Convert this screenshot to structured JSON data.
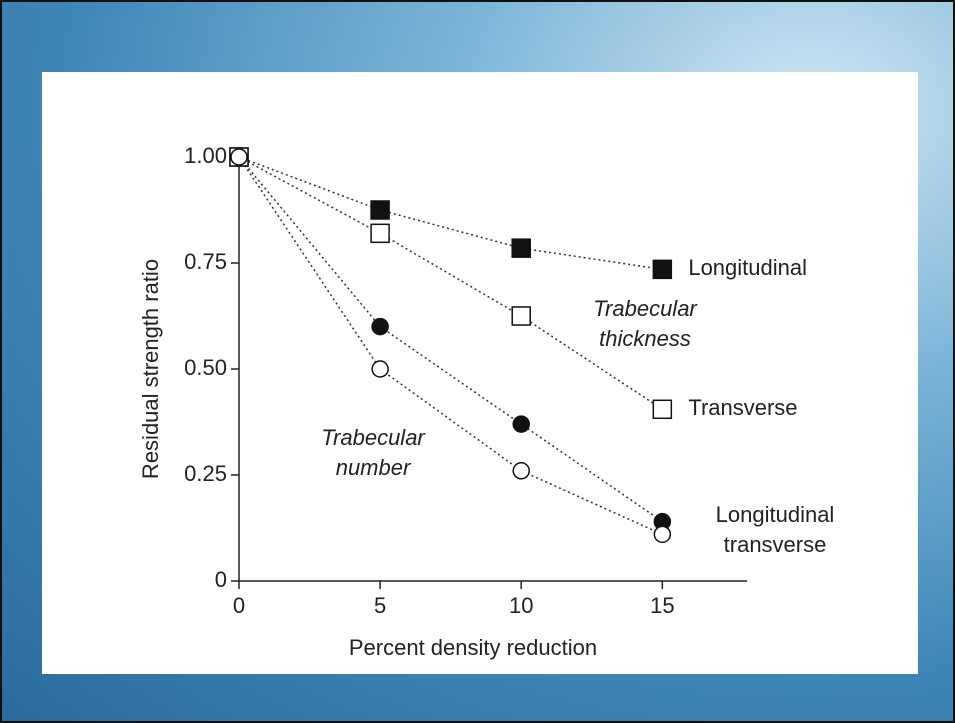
{
  "chart_data": {
    "type": "scatter",
    "y_label": "Residual strength ratio",
    "x_label": "Percent density reduction",
    "x": [
      0,
      5,
      10,
      15
    ],
    "xlim": [
      0,
      18
    ],
    "xticks": [
      0,
      5,
      10,
      15
    ],
    "ylim": [
      0,
      1
    ],
    "yticks": [
      {
        "value": 0,
        "label": "0"
      },
      {
        "value": 0.25,
        "label": "0.25"
      },
      {
        "value": 0.5,
        "label": "0.50"
      },
      {
        "value": 0.75,
        "label": "0.75"
      },
      {
        "value": 1,
        "label": "1.00"
      }
    ],
    "series": [
      {
        "name": "Longitudinal",
        "marker": "square",
        "color": "#111",
        "filled": true,
        "values": [
          1.0,
          0.875,
          0.785,
          0.735
        ]
      },
      {
        "name": "Transverse",
        "marker": "square",
        "color": "#111",
        "filled": false,
        "values": [
          1.0,
          0.82,
          0.625,
          0.405
        ]
      },
      {
        "marker": "circle",
        "color": "#111",
        "filled": true,
        "values": [
          1.0,
          0.6,
          0.37,
          0.14
        ]
      },
      {
        "marker": "circle",
        "color": "#111",
        "filled": false,
        "values": [
          1.0,
          0.5,
          0.26,
          0.11
        ]
      }
    ],
    "annotations": [
      {
        "lines": [
          "Trabecular",
          "thickness"
        ]
      },
      {
        "lines": [
          "Trabecular",
          "number"
        ]
      },
      {
        "lines": [
          "Longitudinal",
          "transverse"
        ]
      }
    ]
  }
}
